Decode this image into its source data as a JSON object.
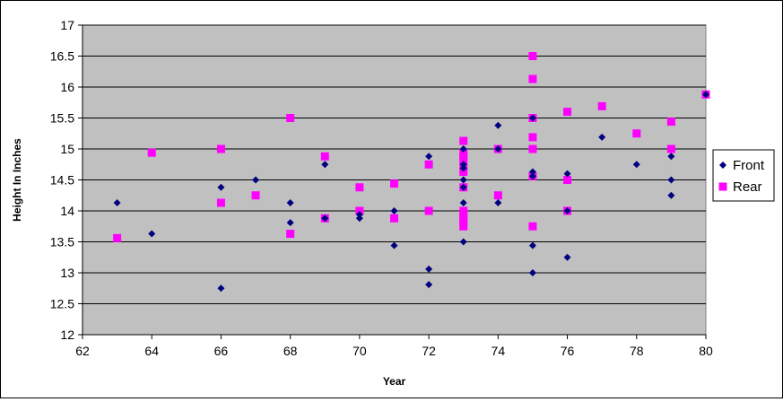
{
  "chart_data": {
    "type": "scatter",
    "title": "",
    "xlabel": "Year",
    "ylabel": "Height In Inches",
    "xlim": [
      62,
      80
    ],
    "ylim": [
      12,
      17
    ],
    "xticks": [
      "62",
      "64",
      "66",
      "68",
      "70",
      "72",
      "74",
      "76",
      "78",
      "80"
    ],
    "yticks": [
      "12",
      "12.5",
      "13",
      "13.5",
      "14",
      "14.5",
      "15",
      "15.5",
      "16",
      "16.5",
      "17"
    ],
    "grid": "horizontal",
    "plot_background": "#C0C0C0",
    "legend_position": "right",
    "series": [
      {
        "name": "Front",
        "color": "#000080",
        "marker": "diamond",
        "points": [
          [
            63,
            14.13
          ],
          [
            64,
            13.63
          ],
          [
            66,
            14.38
          ],
          [
            66,
            12.75
          ],
          [
            67,
            14.5
          ],
          [
            68,
            14.13
          ],
          [
            68,
            13.81
          ],
          [
            69,
            14.75
          ],
          [
            69,
            13.88
          ],
          [
            70,
            13.94
          ],
          [
            70,
            13.88
          ],
          [
            71,
            14.0
          ],
          [
            71,
            13.44
          ],
          [
            72,
            14.88
          ],
          [
            72,
            13.06
          ],
          [
            72,
            12.81
          ],
          [
            73,
            15.0
          ],
          [
            73,
            14.75
          ],
          [
            73,
            14.69
          ],
          [
            73,
            14.5
          ],
          [
            73,
            14.38
          ],
          [
            73,
            14.13
          ],
          [
            73,
            13.5
          ],
          [
            74,
            15.38
          ],
          [
            74,
            15.0
          ],
          [
            74,
            14.13
          ],
          [
            75,
            15.5
          ],
          [
            75,
            14.63
          ],
          [
            75,
            14.56
          ],
          [
            75,
            13.44
          ],
          [
            75,
            13.0
          ],
          [
            76,
            14.6
          ],
          [
            76,
            14.0
          ],
          [
            76,
            13.25
          ],
          [
            77,
            15.19
          ],
          [
            78,
            14.75
          ],
          [
            79,
            14.88
          ],
          [
            79,
            14.5
          ],
          [
            79,
            14.25
          ],
          [
            80,
            15.88
          ]
        ]
      },
      {
        "name": "Rear",
        "color": "#FF00FF",
        "marker": "square",
        "points": [
          [
            63,
            13.56
          ],
          [
            64,
            14.94
          ],
          [
            66,
            15.0
          ],
          [
            66,
            14.13
          ],
          [
            67,
            14.25
          ],
          [
            68,
            15.5
          ],
          [
            68,
            13.63
          ],
          [
            69,
            14.88
          ],
          [
            69,
            13.88
          ],
          [
            70,
            14.38
          ],
          [
            70,
            14.0
          ],
          [
            71,
            14.44
          ],
          [
            71,
            13.88
          ],
          [
            72,
            14.75
          ],
          [
            72,
            14.0
          ],
          [
            73,
            15.13
          ],
          [
            73,
            14.94
          ],
          [
            73,
            14.88
          ],
          [
            73,
            14.81
          ],
          [
            73,
            14.69
          ],
          [
            73,
            14.63
          ],
          [
            73,
            14.38
          ],
          [
            73,
            14.0
          ],
          [
            73,
            13.94
          ],
          [
            73,
            13.88
          ],
          [
            73,
            13.81
          ],
          [
            73,
            13.75
          ],
          [
            74,
            15.0
          ],
          [
            74,
            14.25
          ],
          [
            75,
            16.5
          ],
          [
            75,
            16.13
          ],
          [
            75,
            15.5
          ],
          [
            75,
            15.19
          ],
          [
            75,
            15.0
          ],
          [
            75,
            14.56
          ],
          [
            75,
            13.75
          ],
          [
            76,
            15.6
          ],
          [
            76,
            14.5
          ],
          [
            76,
            14.0
          ],
          [
            77,
            15.69
          ],
          [
            78,
            15.25
          ],
          [
            79,
            15.44
          ],
          [
            79,
            15.0
          ],
          [
            80,
            15.88
          ]
        ]
      }
    ]
  }
}
